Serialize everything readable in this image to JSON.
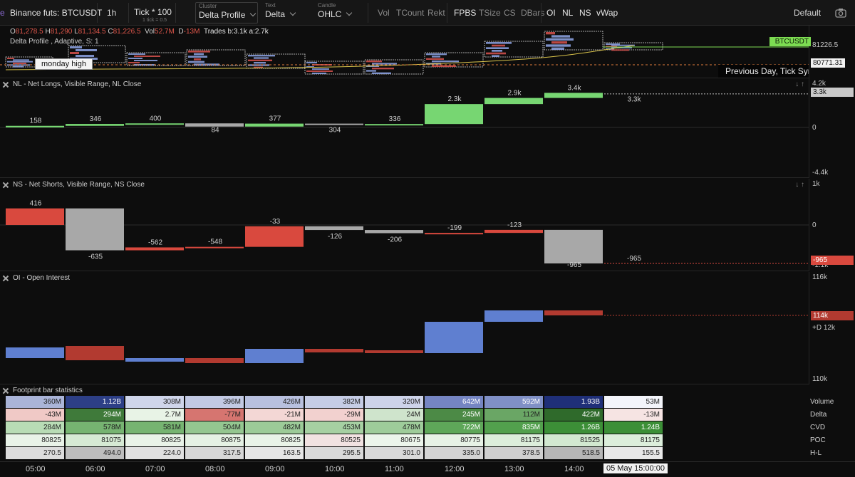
{
  "toolbar": {
    "symbol": "Binance futs: BTCUSDT",
    "timeframe": "1h",
    "tick_value": "Tick * 100",
    "tick_sub": "1 tick = 0.5",
    "cluster_caption": "Cluster",
    "cluster_value": "Delta Profile",
    "text_caption": "Text",
    "text_value": "Delta",
    "candle_caption": "Candle",
    "candle_value": "OHLC",
    "toggles": [
      "Vol",
      "TCount",
      "Rekt",
      "FPBS",
      "TSize",
      "CS",
      "DBars",
      "OI",
      "NL",
      "NS",
      "vWap"
    ],
    "active_toggles": [
      "FPBS",
      "OI",
      "NL",
      "NS",
      "vWap"
    ],
    "layout": "Default",
    "camera_icon": "camera-icon"
  },
  "main": {
    "ohlc": {
      "o_label": "O",
      "o_value": "81,278.5",
      "h_label": "H",
      "h_value": "81,290",
      "l_label": "L",
      "l_value": "81,134.5",
      "c_label": "C",
      "c_value": "81,226.5",
      "vol_label": "Vol",
      "vol_value": "52.7M",
      "d_label": "D",
      "d_value": "-13M",
      "trades": "Trades b:3.1k a:2.7k"
    },
    "indicator": "Delta Profile , Adaptive, S: 1",
    "monday_high": "monday high",
    "prev_day": "Previous Day, Tick Sync",
    "symbol_tag": "BTCUSDT",
    "price_last": "81226.5",
    "price_level": "80771.31"
  },
  "nl": {
    "title": "NL - Net Longs, Visible Range, NL Close",
    "axis_top": "4.2k",
    "axis_zero": "0",
    "axis_bottom": "-4.4k",
    "last_tag": "3.3k",
    "labels": [
      "158",
      "346",
      "400",
      "84",
      "377",
      "304",
      "336",
      "2.3k",
      "2.9k",
      "3.4k",
      "3.3k"
    ]
  },
  "ns": {
    "title": "NS - Net Shorts, Visible Range, NS Close",
    "axis_top": "1k",
    "axis_zero": "0",
    "axis_bottom": "-1.1k",
    "last_tag": "-965",
    "labels": [
      "416",
      "-635",
      "-562",
      "-548",
      "-33",
      "-126",
      "-206",
      "-199",
      "-123",
      "-965",
      "-965"
    ]
  },
  "oi": {
    "title": "OI - Open Interest",
    "axis_top": "116k",
    "axis_bottom": "110k",
    "last_tag": "114k",
    "delta_label": "+D 12k"
  },
  "stats": {
    "title": "Footprint bar statistics",
    "rows": [
      {
        "label": "Volume",
        "values": [
          "360M",
          "1.12B",
          "308M",
          "396M",
          "426M",
          "382M",
          "320M",
          "642M",
          "592M",
          "1.93B",
          "53M"
        ]
      },
      {
        "label": "Delta",
        "values": [
          "-43M",
          "294M",
          "2.7M",
          "-77M",
          "-21M",
          "-29M",
          "24M",
          "245M",
          "112M",
          "422M",
          "-13M"
        ]
      },
      {
        "label": "CVD",
        "values": [
          "284M",
          "578M",
          "581M",
          "504M",
          "482M",
          "453M",
          "478M",
          "722M",
          "835M",
          "1.26B",
          "1.24B"
        ]
      },
      {
        "label": "POC",
        "values": [
          "80825",
          "81075",
          "80825",
          "80875",
          "80825",
          "80525",
          "80675",
          "80775",
          "81175",
          "81525",
          "81175"
        ]
      },
      {
        "label": "H-L",
        "values": [
          "270.5",
          "494.0",
          "224.0",
          "317.5",
          "163.5",
          "295.5",
          "301.0",
          "335.0",
          "378.5",
          "518.5",
          "155.5"
        ]
      }
    ]
  },
  "time_axis": {
    "ticks": [
      "05:00",
      "06:00",
      "07:00",
      "08:00",
      "09:00",
      "10:00",
      "11:00",
      "12:00",
      "13:00",
      "14:00"
    ],
    "current": "05 May 15:00:00"
  },
  "colors": {
    "green": "#77d672",
    "red": "#d9493e",
    "gray": "#a8a8a8",
    "blue": "#5f7fd0",
    "darkred": "#b23a30",
    "tag_green": "#7ddc52"
  }
}
